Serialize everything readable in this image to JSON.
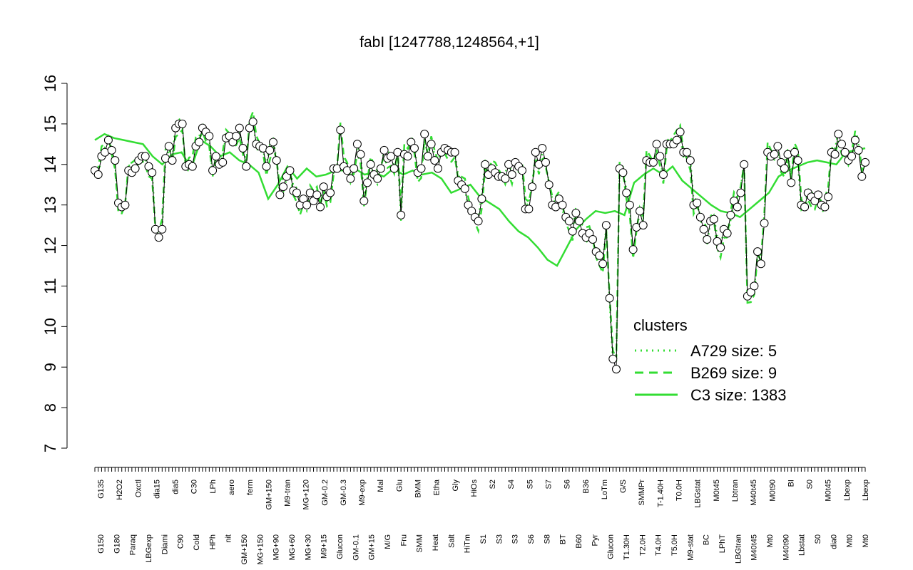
{
  "chart_data": {
    "type": "scatter",
    "title": "fabI [1247788,1248564,+1]",
    "xlabel": "",
    "ylabel": "",
    "ylim": [
      7,
      16
    ],
    "yticks": [
      7,
      8,
      9,
      10,
      11,
      12,
      13,
      14,
      15,
      16
    ],
    "grid": false,
    "legend_position": "right-middle",
    "legend": {
      "title": "clusters",
      "entries": [
        {
          "label": "A729 size: 5",
          "style": "dotted"
        },
        {
          "label": "B269 size: 9",
          "style": "dashed"
        },
        {
          "label": "C3 size: 1383",
          "style": "solid"
        }
      ]
    },
    "colors": {
      "line": "#33dd33",
      "points_stroke": "#000000",
      "points_fill": "#ffffff"
    },
    "x_tick_labels_upper": [
      "G135",
      "H2O2",
      "Oxctl",
      "dia15",
      "dia5",
      "C30",
      "LPh",
      "aero",
      "ferm",
      "GM+150",
      "M9-tran",
      "MG+120",
      "GM-0.2",
      "GM-0.3",
      "M9-exp",
      "Mal",
      "Glu",
      "BMM",
      "Etha",
      "Gly",
      "HiOs",
      "S2",
      "S4",
      "S5",
      "S7",
      "S6",
      "B36",
      "LoTm",
      "G/S",
      "SMMPr",
      "T-1.40H",
      "T0.0H",
      "LBGstat",
      "M0t45",
      "Lbtran",
      "M40t45",
      "M0t90",
      "BI",
      "S0",
      "M0t45",
      "Lbexp",
      "Lbexp"
    ],
    "x_tick_labels_lower": [
      "G150",
      "G180",
      "Paraq",
      "LBGexp",
      "Diami",
      "C90",
      "Cold",
      "HPh",
      "nit",
      "GM+150",
      "MG+150",
      "MG+90",
      "MG+60",
      "MG+30",
      "M9+15",
      "Glucon",
      "GM-0.1",
      "GM+15",
      "M/G",
      "Fru",
      "SMM",
      "Heat",
      "Salt",
      "HiTm",
      "S1",
      "S3",
      "S3",
      "S6",
      "S8",
      "BT",
      "B60",
      "Pyr",
      "Glucon",
      "T1.30H",
      "T2.0H",
      "T4.0H",
      "T5.0H",
      "M9-stat",
      "BC",
      "LPhT",
      "LBGtran",
      "M40t45",
      "Mt0",
      "M40t90",
      "Lbstat",
      "S0",
      "dia0",
      "Mt0",
      "Mt0"
    ],
    "points": [
      {
        "x": 1,
        "y": 13.85
      },
      {
        "x": 2,
        "y": 13.75
      },
      {
        "x": 3,
        "y": 14.2
      },
      {
        "x": 4,
        "y": 14.3
      },
      {
        "x": 5,
        "y": 14.6
      },
      {
        "x": 6,
        "y": 14.35
      },
      {
        "x": 7,
        "y": 14.1
      },
      {
        "x": 8,
        "y": 13.05
      },
      {
        "x": 9,
        "y": 12.95
      },
      {
        "x": 10,
        "y": 13.0
      },
      {
        "x": 11,
        "y": 13.85
      },
      {
        "x": 12,
        "y": 13.8
      },
      {
        "x": 13,
        "y": 13.9
      },
      {
        "x": 14,
        "y": 14.1
      },
      {
        "x": 15,
        "y": 14.2
      },
      {
        "x": 16,
        "y": 14.2
      },
      {
        "x": 17,
        "y": 13.95
      },
      {
        "x": 18,
        "y": 13.8
      },
      {
        "x": 19,
        "y": 12.4
      },
      {
        "x": 20,
        "y": 12.2
      },
      {
        "x": 21,
        "y": 12.4
      },
      {
        "x": 22,
        "y": 14.15
      },
      {
        "x": 23,
        "y": 14.45
      },
      {
        "x": 24,
        "y": 14.1
      },
      {
        "x": 25,
        "y": 14.9
      },
      {
        "x": 26,
        "y": 15.0
      },
      {
        "x": 27,
        "y": 15.0
      },
      {
        "x": 28,
        "y": 13.95
      },
      {
        "x": 29,
        "y": 14.0
      },
      {
        "x": 30,
        "y": 13.95
      },
      {
        "x": 31,
        "y": 14.45
      },
      {
        "x": 32,
        "y": 14.55
      },
      {
        "x": 33,
        "y": 14.9
      },
      {
        "x": 34,
        "y": 14.8
      },
      {
        "x": 35,
        "y": 14.7
      },
      {
        "x": 36,
        "y": 13.85
      },
      {
        "x": 37,
        "y": 14.2
      },
      {
        "x": 38,
        "y": 14.0
      },
      {
        "x": 39,
        "y": 14.05
      },
      {
        "x": 40,
        "y": 14.65
      },
      {
        "x": 41,
        "y": 14.7
      },
      {
        "x": 42,
        "y": 14.55
      },
      {
        "x": 43,
        "y": 14.7
      },
      {
        "x": 44,
        "y": 14.9
      },
      {
        "x": 45,
        "y": 14.4
      },
      {
        "x": 46,
        "y": 13.95
      },
      {
        "x": 47,
        "y": 14.9
      },
      {
        "x": 48,
        "y": 15.05
      },
      {
        "x": 49,
        "y": 14.5
      },
      {
        "x": 50,
        "y": 14.45
      },
      {
        "x": 51,
        "y": 14.4
      },
      {
        "x": 52,
        "y": 13.95
      },
      {
        "x": 53,
        "y": 14.35
      },
      {
        "x": 54,
        "y": 14.55
      },
      {
        "x": 55,
        "y": 14.1
      },
      {
        "x": 56,
        "y": 13.25
      },
      {
        "x": 57,
        "y": 13.45
      },
      {
        "x": 58,
        "y": 13.7
      },
      {
        "x": 59,
        "y": 13.85
      },
      {
        "x": 60,
        "y": 13.35
      },
      {
        "x": 61,
        "y": 13.3
      },
      {
        "x": 62,
        "y": 13.0
      },
      {
        "x": 63,
        "y": 13.15
      },
      {
        "x": 64,
        "y": 13.0
      },
      {
        "x": 65,
        "y": 13.3
      },
      {
        "x": 66,
        "y": 13.1
      },
      {
        "x": 67,
        "y": 13.25
      },
      {
        "x": 68,
        "y": 12.95
      },
      {
        "x": 69,
        "y": 13.45
      },
      {
        "x": 70,
        "y": 13.2
      },
      {
        "x": 71,
        "y": 13.3
      },
      {
        "x": 72,
        "y": 13.9
      },
      {
        "x": 73,
        "y": 13.9
      },
      {
        "x": 74,
        "y": 14.85
      },
      {
        "x": 75,
        "y": 13.95
      },
      {
        "x": 76,
        "y": 13.85
      },
      {
        "x": 77,
        "y": 13.65
      },
      {
        "x": 78,
        "y": 13.9
      },
      {
        "x": 79,
        "y": 14.5
      },
      {
        "x": 80,
        "y": 14.25
      },
      {
        "x": 81,
        "y": 13.1
      },
      {
        "x": 82,
        "y": 13.55
      },
      {
        "x": 83,
        "y": 14.0
      },
      {
        "x": 84,
        "y": 13.75
      },
      {
        "x": 85,
        "y": 13.65
      },
      {
        "x": 86,
        "y": 13.9
      },
      {
        "x": 87,
        "y": 14.35
      },
      {
        "x": 88,
        "y": 14.15
      },
      {
        "x": 89,
        "y": 14.2
      },
      {
        "x": 90,
        "y": 13.9
      },
      {
        "x": 91,
        "y": 14.3
      },
      {
        "x": 92,
        "y": 12.75
      },
      {
        "x": 93,
        "y": 14.25
      },
      {
        "x": 94,
        "y": 14.2
      },
      {
        "x": 95,
        "y": 14.55
      },
      {
        "x": 96,
        "y": 14.4
      },
      {
        "x": 97,
        "y": 13.8
      },
      {
        "x": 98,
        "y": 13.9
      },
      {
        "x": 99,
        "y": 14.75
      },
      {
        "x": 100,
        "y": 14.2
      },
      {
        "x": 101,
        "y": 14.5
      },
      {
        "x": 102,
        "y": 14.1
      },
      {
        "x": 103,
        "y": 13.9
      },
      {
        "x": 104,
        "y": 14.3
      },
      {
        "x": 105,
        "y": 14.4
      },
      {
        "x": 106,
        "y": 14.35
      },
      {
        "x": 107,
        "y": 14.3
      },
      {
        "x": 108,
        "y": 14.3
      },
      {
        "x": 109,
        "y": 13.6
      },
      {
        "x": 110,
        "y": 13.5
      },
      {
        "x": 111,
        "y": 13.4
      },
      {
        "x": 112,
        "y": 13.0
      },
      {
        "x": 113,
        "y": 12.85
      },
      {
        "x": 114,
        "y": 12.7
      },
      {
        "x": 115,
        "y": 12.6
      },
      {
        "x": 116,
        "y": 13.15
      },
      {
        "x": 117,
        "y": 14.0
      },
      {
        "x": 118,
        "y": 13.75
      },
      {
        "x": 119,
        "y": 13.9
      },
      {
        "x": 120,
        "y": 13.8
      },
      {
        "x": 121,
        "y": 13.7
      },
      {
        "x": 122,
        "y": 13.7
      },
      {
        "x": 123,
        "y": 13.65
      },
      {
        "x": 124,
        "y": 14.0
      },
      {
        "x": 125,
        "y": 13.75
      },
      {
        "x": 126,
        "y": 14.05
      },
      {
        "x": 127,
        "y": 13.95
      },
      {
        "x": 128,
        "y": 13.85
      },
      {
        "x": 129,
        "y": 12.9
      },
      {
        "x": 130,
        "y": 12.9
      },
      {
        "x": 131,
        "y": 13.45
      },
      {
        "x": 132,
        "y": 14.3
      },
      {
        "x": 133,
        "y": 14.0
      },
      {
        "x": 134,
        "y": 14.4
      },
      {
        "x": 135,
        "y": 14.05
      },
      {
        "x": 136,
        "y": 13.5
      },
      {
        "x": 137,
        "y": 13.0
      },
      {
        "x": 138,
        "y": 12.95
      },
      {
        "x": 139,
        "y": 13.15
      },
      {
        "x": 140,
        "y": 13.0
      },
      {
        "x": 141,
        "y": 12.7
      },
      {
        "x": 142,
        "y": 12.6
      },
      {
        "x": 143,
        "y": 12.35
      },
      {
        "x": 144,
        "y": 12.8
      },
      {
        "x": 145,
        "y": 12.6
      },
      {
        "x": 146,
        "y": 12.3
      },
      {
        "x": 147,
        "y": 12.2
      },
      {
        "x": 148,
        "y": 12.3
      },
      {
        "x": 149,
        "y": 12.15
      },
      {
        "x": 150,
        "y": 11.85
      },
      {
        "x": 151,
        "y": 11.75
      },
      {
        "x": 152,
        "y": 11.55
      },
      {
        "x": 153,
        "y": 12.5
      },
      {
        "x": 154,
        "y": 10.7
      },
      {
        "x": 155,
        "y": 9.2
      },
      {
        "x": 156,
        "y": 8.95
      },
      {
        "x": 157,
        "y": 13.9
      },
      {
        "x": 158,
        "y": 13.8
      },
      {
        "x": 159,
        "y": 13.3
      },
      {
        "x": 160,
        "y": 13.0
      },
      {
        "x": 161,
        "y": 11.9
      },
      {
        "x": 162,
        "y": 12.45
      },
      {
        "x": 163,
        "y": 12.85
      },
      {
        "x": 164,
        "y": 12.5
      },
      {
        "x": 165,
        "y": 14.1
      },
      {
        "x": 166,
        "y": 14.05
      },
      {
        "x": 167,
        "y": 14.05
      },
      {
        "x": 168,
        "y": 14.5
      },
      {
        "x": 169,
        "y": 14.2
      },
      {
        "x": 170,
        "y": 13.75
      },
      {
        "x": 171,
        "y": 14.5
      },
      {
        "x": 172,
        "y": 14.5
      },
      {
        "x": 173,
        "y": 14.5
      },
      {
        "x": 174,
        "y": 14.6
      },
      {
        "x": 175,
        "y": 14.8
      },
      {
        "x": 176,
        "y": 14.3
      },
      {
        "x": 177,
        "y": 14.3
      },
      {
        "x": 178,
        "y": 14.1
      },
      {
        "x": 179,
        "y": 13.0
      },
      {
        "x": 180,
        "y": 13.05
      },
      {
        "x": 181,
        "y": 12.7
      },
      {
        "x": 182,
        "y": 12.4
      },
      {
        "x": 183,
        "y": 12.15
      },
      {
        "x": 184,
        "y": 12.6
      },
      {
        "x": 185,
        "y": 12.65
      },
      {
        "x": 186,
        "y": 12.1
      },
      {
        "x": 187,
        "y": 11.95
      },
      {
        "x": 188,
        "y": 12.4
      },
      {
        "x": 189,
        "y": 12.3
      },
      {
        "x": 190,
        "y": 12.75
      },
      {
        "x": 191,
        "y": 13.1
      },
      {
        "x": 192,
        "y": 12.95
      },
      {
        "x": 193,
        "y": 13.3
      },
      {
        "x": 194,
        "y": 14.0
      },
      {
        "x": 195,
        "y": 10.75
      },
      {
        "x": 196,
        "y": 10.85
      },
      {
        "x": 197,
        "y": 11.0
      },
      {
        "x": 198,
        "y": 11.85
      },
      {
        "x": 199,
        "y": 11.55
      },
      {
        "x": 200,
        "y": 12.55
      },
      {
        "x": 201,
        "y": 14.3
      },
      {
        "x": 202,
        "y": 14.2
      },
      {
        "x": 203,
        "y": 14.25
      },
      {
        "x": 204,
        "y": 14.45
      },
      {
        "x": 205,
        "y": 14.05
      },
      {
        "x": 206,
        "y": 13.9
      },
      {
        "x": 207,
        "y": 14.25
      },
      {
        "x": 208,
        "y": 13.55
      },
      {
        "x": 209,
        "y": 14.3
      },
      {
        "x": 210,
        "y": 14.1
      },
      {
        "x": 211,
        "y": 13.0
      },
      {
        "x": 212,
        "y": 12.95
      },
      {
        "x": 213,
        "y": 13.3
      },
      {
        "x": 214,
        "y": 13.2
      },
      {
        "x": 215,
        "y": 13.1
      },
      {
        "x": 216,
        "y": 13.25
      },
      {
        "x": 217,
        "y": 13.0
      },
      {
        "x": 218,
        "y": 12.95
      },
      {
        "x": 219,
        "y": 13.2
      },
      {
        "x": 220,
        "y": 14.3
      },
      {
        "x": 221,
        "y": 14.25
      },
      {
        "x": 222,
        "y": 14.75
      },
      {
        "x": 223,
        "y": 14.5
      },
      {
        "x": 224,
        "y": 14.3
      },
      {
        "x": 225,
        "y": 14.1
      },
      {
        "x": 226,
        "y": 14.2
      },
      {
        "x": 227,
        "y": 14.6
      },
      {
        "x": 228,
        "y": 14.35
      },
      {
        "x": 229,
        "y": 13.7
      },
      {
        "x": 230,
        "y": 14.05
      }
    ],
    "series": [
      {
        "name": "C3 size: 1383",
        "style": "solid",
        "values": [
          14.6,
          14.75,
          14.65,
          14.6,
          14.55,
          14.5,
          14.2,
          14.0,
          14.25,
          14.3,
          13.9,
          14.6,
          14.45,
          14.2,
          14.3,
          14.1,
          14.0,
          13.8,
          13.15,
          13.5,
          13.95,
          13.65,
          13.9,
          13.7,
          13.75,
          13.85,
          13.85,
          13.9,
          13.75,
          13.8,
          13.7,
          13.9,
          13.75,
          13.85,
          13.75,
          13.8,
          13.65,
          13.3,
          13.4,
          13.5,
          13.2,
          13.05,
          12.9,
          12.6,
          12.35,
          12.2,
          11.95,
          11.65,
          11.5,
          11.95,
          12.4,
          12.65,
          12.85,
          12.8,
          12.85,
          12.75,
          13.55,
          13.75,
          13.9,
          13.75,
          13.95,
          13.6,
          13.4,
          13.2,
          13.0,
          12.85,
          12.8,
          12.7,
          12.9,
          13.1,
          13.3,
          13.7,
          13.85,
          13.95,
          14.05,
          14.1,
          14.05,
          14.0,
          14.3,
          14.35,
          14.4
        ]
      }
    ]
  }
}
